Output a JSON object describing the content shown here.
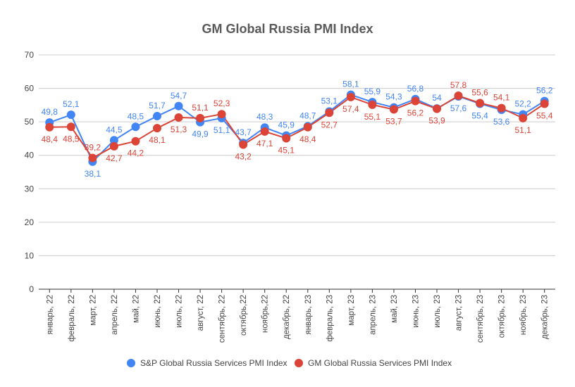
{
  "chart_data": {
    "type": "line",
    "title": "GM Global Russia PMI Index",
    "categories": [
      "январь, 22",
      "февраль, 22",
      "март, 22",
      "апрель, 22",
      "май, 22",
      "июнь, 22",
      "июль, 22",
      "август, 22",
      "сентябрь, 22",
      "октябрь,22",
      "ноябрь,22",
      "декабрь, 22",
      "январь, 23",
      "февраль, 23",
      "март, 23",
      "апрель, 23",
      "май, 23",
      "июнь, 23",
      "июль, 23",
      "август, 23",
      "сентябрь, 23",
      "октябрь, 23",
      "ноябрь, 23",
      "декабрь, 23"
    ],
    "series": [
      {
        "name": "S&P Global Russia Services PMI Index",
        "color": "#4285f4",
        "values": [
          49.8,
          52.1,
          38.1,
          44.5,
          48.5,
          51.7,
          54.7,
          49.9,
          51.1,
          43.7,
          48.3,
          45.9,
          48.7,
          53.1,
          58.1,
          55.9,
          54.3,
          56.8,
          54,
          57.6,
          55.4,
          53.6,
          52.2,
          56.2
        ],
        "labels": [
          "49,8",
          "52,1",
          "38,1",
          "44,5",
          "48,5",
          "51,7",
          "54,7",
          "49,9",
          "51,1",
          "43,7",
          "48,3",
          "45,9",
          "48,7",
          "53,1",
          "58,1",
          "55,9",
          "54,3",
          "56,8",
          "54",
          "57,6",
          "55,4",
          "53,6",
          "52,2",
          "56,2"
        ]
      },
      {
        "name": "GM Global Russia Services PMI Index",
        "color": "#db4437",
        "values": [
          48.4,
          48.5,
          39.2,
          42.7,
          44.2,
          48.1,
          51.3,
          51.1,
          52.3,
          43.2,
          47.1,
          45.1,
          48.4,
          52.7,
          57.4,
          55.1,
          53.7,
          56.2,
          53.9,
          57.8,
          55.6,
          54.1,
          51.1,
          55.4
        ],
        "labels": [
          "48,4",
          "48,5",
          "39,2",
          "42,7",
          "44,2",
          "48,1",
          "51,3",
          "51,1",
          "52,3",
          "43,2",
          "47,1",
          "45,1",
          "48,4",
          "52,7",
          "57,4",
          "55,1",
          "53,7",
          "56,2",
          "53,9",
          "57,8",
          "55,6",
          "54,1",
          "51,1",
          "55,4"
        ]
      }
    ],
    "ylim": [
      0,
      70
    ],
    "yticks": [
      0,
      10,
      20,
      30,
      40,
      50,
      60,
      70
    ],
    "grid": true,
    "legend": "bottom"
  }
}
